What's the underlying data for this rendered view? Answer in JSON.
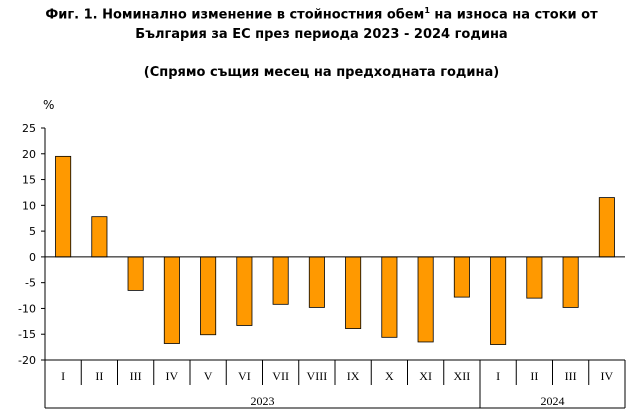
{
  "title": {
    "line1_a": "Фиг. 1. Номинално изменение в стойностния обем",
    "line1_sup": "1",
    "line1_b": " на износа на стоки от",
    "line2": "България за ЕС през периода 2023 - 2024 година",
    "subtitle": "(Спрямо същия месец на предходната година)"
  },
  "colors": {
    "bar": "#FF9900",
    "bar_stroke": "#000000",
    "axis": "#000000"
  },
  "chart_data": {
    "type": "bar",
    "unit_label": "%",
    "categories": [
      "I",
      "II",
      "III",
      "IV",
      "V",
      "VI",
      "VII",
      "VIII",
      "IX",
      "X",
      "XI",
      "XII",
      "I",
      "II",
      "III",
      "IV"
    ],
    "groups": [
      {
        "label": "2023",
        "count": 12
      },
      {
        "label": "2024",
        "count": 4
      }
    ],
    "values": [
      19.5,
      7.8,
      -6.5,
      -16.8,
      -15.1,
      -13.3,
      -9.2,
      -9.8,
      -13.9,
      -15.6,
      -16.5,
      -7.8,
      -17.0,
      -8.0,
      -9.8,
      11.5
    ],
    "ylim": [
      -20,
      25
    ],
    "yticks": [
      25,
      20,
      15,
      10,
      5,
      0,
      -5,
      -10,
      -15,
      -20
    ]
  }
}
